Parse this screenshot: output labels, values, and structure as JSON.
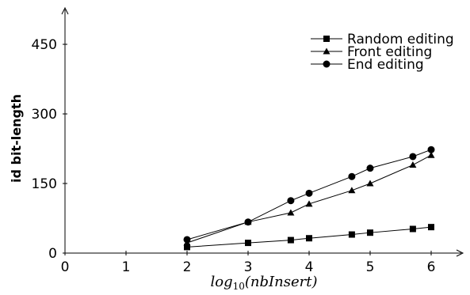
{
  "chart_data": {
    "type": "line",
    "xlabel": "log10(nbInsert)",
    "xlabel_parts": {
      "base": "log",
      "sub": "10",
      "arg": "(nbInsert)"
    },
    "ylabel": "id bit-length",
    "xlim": [
      0,
      6.45
    ],
    "ylim": [
      0,
      540
    ],
    "x_ticks": [
      0,
      1,
      2,
      3,
      4,
      5,
      6
    ],
    "y_ticks": [
      0,
      150,
      300,
      450
    ],
    "legend_position": "top-right",
    "grid": false,
    "series": [
      {
        "name": "Random editing",
        "marker": "square",
        "x": [
          2,
          3,
          3.7,
          4,
          4.7,
          5,
          5.7,
          6
        ],
        "y": [
          13,
          22,
          28,
          32,
          40,
          44,
          52,
          56
        ]
      },
      {
        "name": "Front editing",
        "marker": "triangle",
        "x": [
          2,
          3,
          3.7,
          4,
          4.7,
          5,
          5.7,
          6
        ],
        "y": [
          22,
          67,
          87,
          106,
          135,
          150,
          190,
          211
        ]
      },
      {
        "name": "End editing",
        "marker": "circle",
        "x": [
          2,
          3,
          3.7,
          4,
          4.7,
          5,
          5.7,
          6
        ],
        "y": [
          29,
          67,
          113,
          129,
          165,
          183,
          208,
          223
        ]
      }
    ]
  }
}
